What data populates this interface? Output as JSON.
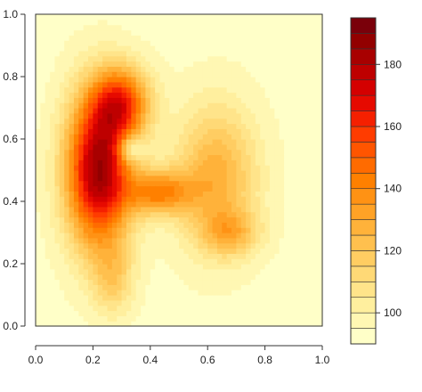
{
  "chart_data": {
    "type": "heatmap",
    "title": "",
    "xlabel": "",
    "ylabel": "",
    "xlim": [
      0.0,
      1.0
    ],
    "ylim": [
      0.0,
      1.0
    ],
    "x_ticks": [
      "0.0",
      "0.2",
      "0.4",
      "0.6",
      "0.8",
      "1.0"
    ],
    "y_ticks": [
      "0.0",
      "0.2",
      "0.4",
      "0.6",
      "0.8",
      "1.0"
    ],
    "grid": false,
    "colorbar": {
      "range": [
        90,
        195
      ],
      "ticks": [
        "100",
        "120",
        "140",
        "160",
        "180"
      ],
      "levels": [
        90,
        95,
        100,
        105,
        110,
        115,
        120,
        125,
        130,
        135,
        140,
        145,
        150,
        155,
        160,
        165,
        170,
        175,
        180,
        185,
        190,
        195
      ],
      "colors": [
        "#FFFFC8",
        "#FFF7B3",
        "#FFEF9E",
        "#FFE48A",
        "#FFD976",
        "#FFCD62",
        "#FFC04E",
        "#FFB23A",
        "#FFA226",
        "#FF9214",
        "#FF8000",
        "#FF6B00",
        "#FF5500",
        "#FF3C00",
        "#F52000",
        "#E60A00",
        "#D40000",
        "#BE0000",
        "#A80000",
        "#920000",
        "#7A000A"
      ]
    },
    "base_value": 93,
    "hotspots": [
      {
        "x": 0.22,
        "y": 0.5,
        "sx": 0.08,
        "sy": 0.17,
        "amp": 92
      },
      {
        "x": 0.3,
        "y": 0.72,
        "sx": 0.07,
        "sy": 0.08,
        "amp": 55
      },
      {
        "x": 0.33,
        "y": 0.57,
        "sx": 0.03,
        "sy": 0.03,
        "amp": -28
      },
      {
        "x": 0.43,
        "y": 0.43,
        "sx": 0.08,
        "sy": 0.05,
        "amp": 45
      },
      {
        "x": 0.63,
        "y": 0.48,
        "sx": 0.1,
        "sy": 0.16,
        "amp": 35
      },
      {
        "x": 0.68,
        "y": 0.3,
        "sx": 0.07,
        "sy": 0.05,
        "amp": 25
      },
      {
        "x": 0.27,
        "y": 0.15,
        "sx": 0.05,
        "sy": 0.08,
        "amp": 20
      }
    ]
  }
}
